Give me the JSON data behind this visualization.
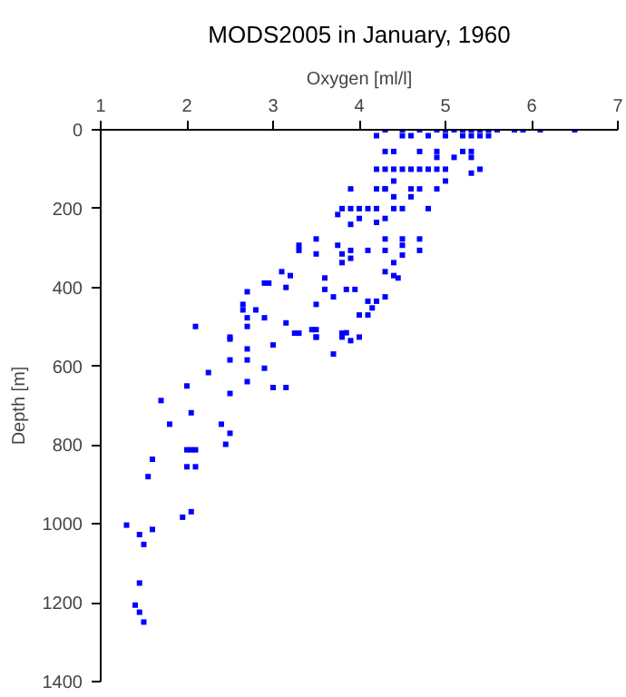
{
  "chart_data": {
    "type": "scatter",
    "title": "MODS2005 in January, 1960",
    "xlabel": "Oxygen [ml/l]",
    "ylabel": "Depth [m]",
    "x": [
      4.3,
      4.5,
      4.7,
      4.9,
      5.0,
      5.1,
      5.2,
      5.3,
      5.4,
      5.5,
      5.6,
      5.8,
      5.9,
      6.1,
      6.5,
      4.2,
      4.5,
      4.6,
      4.8,
      5.0,
      5.2,
      5.3,
      5.4,
      5.5,
      4.3,
      4.4,
      4.7,
      4.9,
      5.2,
      5.3,
      4.9,
      5.1,
      5.3,
      4.2,
      4.3,
      4.4,
      4.5,
      4.6,
      4.7,
      4.8,
      4.9,
      5.0,
      5.4,
      5.3,
      5.0,
      4.4,
      3.9,
      4.2,
      4.3,
      4.3,
      4.6,
      4.7,
      4.9,
      4.4,
      4.6,
      3.8,
      3.9,
      4.0,
      4.1,
      4.2,
      4.4,
      4.5,
      4.8,
      3.75,
      4.0,
      4.3,
      4.2,
      3.9,
      3.5,
      4.3,
      4.5,
      4.7,
      3.3,
      3.75,
      4.5,
      3.3,
      3.9,
      4.1,
      4.3,
      4.7,
      3.5,
      3.8,
      4.5,
      3.9,
      3.8,
      4.4,
      3.1,
      4.3,
      3.2,
      4.4,
      3.6,
      4.45,
      2.9,
      2.95,
      3.15,
      3.6,
      3.85,
      3.95,
      2.7,
      3.7,
      4.3,
      4.1,
      4.2,
      3.5,
      2.65,
      4.15,
      2.65,
      2.8,
      4.0,
      4.1,
      2.7,
      2.9,
      3.15,
      2.1,
      2.7,
      3.5,
      3.3,
      3.8,
      2.5,
      3.5,
      3.8,
      4.0,
      3.45,
      3.25,
      3.5,
      3.85,
      3.9,
      2.5,
      3.0,
      2.7,
      3.7,
      2.5,
      2.7,
      2.9,
      2.25,
      2.7,
      2.0,
      3.0,
      3.15,
      2.5,
      1.7,
      2.05,
      1.8,
      2.4,
      2.5,
      2.45,
      2.0,
      2.05,
      2.1,
      1.6,
      2.0,
      2.1,
      1.55,
      2.05,
      1.95,
      1.3,
      1.6,
      1.45,
      1.5,
      1.45,
      1.4,
      1.45,
      1.5
    ],
    "values": [
      0,
      0,
      0,
      0,
      0,
      0,
      0,
      0,
      0,
      0,
      0,
      0,
      0,
      0,
      0,
      15,
      15,
      15,
      15,
      15,
      15,
      15,
      15,
      15,
      55,
      55,
      55,
      55,
      55,
      55,
      70,
      70,
      70,
      100,
      100,
      100,
      100,
      100,
      100,
      100,
      100,
      100,
      100,
      110,
      130,
      130,
      150,
      150,
      150,
      150,
      150,
      150,
      150,
      170,
      170,
      200,
      200,
      200,
      200,
      200,
      200,
      200,
      200,
      215,
      225,
      225,
      235,
      240,
      277,
      277,
      277,
      277,
      293,
      293,
      293,
      306,
      306,
      306,
      306,
      306,
      315,
      315,
      318,
      326,
      337,
      337,
      360,
      360,
      370,
      370,
      376,
      376,
      389,
      389,
      400,
      405,
      405,
      405,
      411,
      424,
      424,
      435,
      435,
      443,
      443,
      452,
      457,
      457,
      470,
      470,
      477,
      477,
      490,
      499,
      499,
      507,
      516,
      516,
      526,
      526,
      526,
      526,
      507,
      516,
      526,
      515,
      535,
      531,
      546,
      556,
      569,
      584,
      584,
      605,
      616,
      639,
      650,
      654,
      654,
      669,
      687,
      718,
      747,
      747,
      770,
      798,
      812,
      812,
      812,
      836,
      855,
      855,
      880,
      969,
      983,
      1003,
      1014,
      1027,
      1052,
      1150,
      1206,
      1224,
      1249
    ],
    "color": "#0000ff",
    "marker": "square",
    "xlim": [
      1,
      7
    ],
    "xticks": [
      1,
      2,
      3,
      4,
      5,
      6,
      7
    ],
    "ylim": [
      1400,
      0
    ],
    "yticks": [
      0,
      200,
      400,
      600,
      800,
      1000,
      1200,
      1400
    ],
    "grid": false
  }
}
